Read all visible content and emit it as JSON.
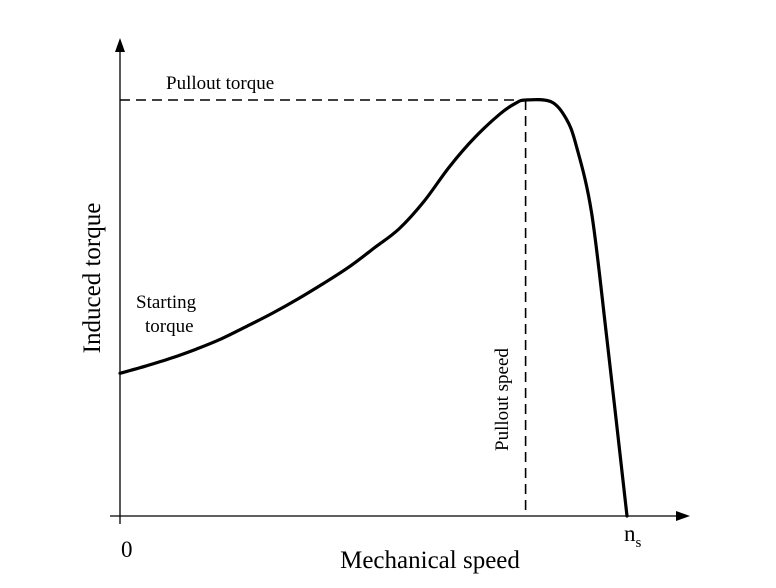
{
  "chart_data": {
    "type": "line",
    "title": "",
    "xlabel": "Mechanical speed",
    "ylabel": "Induced torque",
    "x_tick_labels": {
      "origin": "0",
      "synchronous_base": "n",
      "synchronous_subscript": "s"
    },
    "xlim": [
      0,
      1
    ],
    "ylim": [
      0,
      1
    ],
    "grid": false,
    "series": [
      {
        "x": [
          0,
          0.05,
          0.1,
          0.15,
          0.2,
          0.25,
          0.3,
          0.35,
          0.4,
          0.45,
          0.5,
          0.55,
          0.6,
          0.65,
          0.7,
          0.75,
          0.78,
          0.8,
          0.85,
          0.88,
          0.9,
          0.93,
          0.96,
          1.0
        ],
        "y": [
          0.343,
          0.36,
          0.379,
          0.401,
          0.426,
          0.456,
          0.487,
          0.521,
          0.558,
          0.597,
          0.643,
          0.69,
          0.757,
          0.84,
          0.91,
          0.967,
          0.992,
          1.0,
          0.996,
          0.955,
          0.89,
          0.73,
          0.43,
          0.0
        ]
      }
    ],
    "annotations": {
      "pullout_torque_label": "Pullout torque",
      "pullout_speed_label": "Pullout speed",
      "starting_torque_line1": "Starting",
      "starting_torque_line2": "torque"
    },
    "pullout_point": {
      "x": 0.8,
      "y": 1.0
    }
  }
}
